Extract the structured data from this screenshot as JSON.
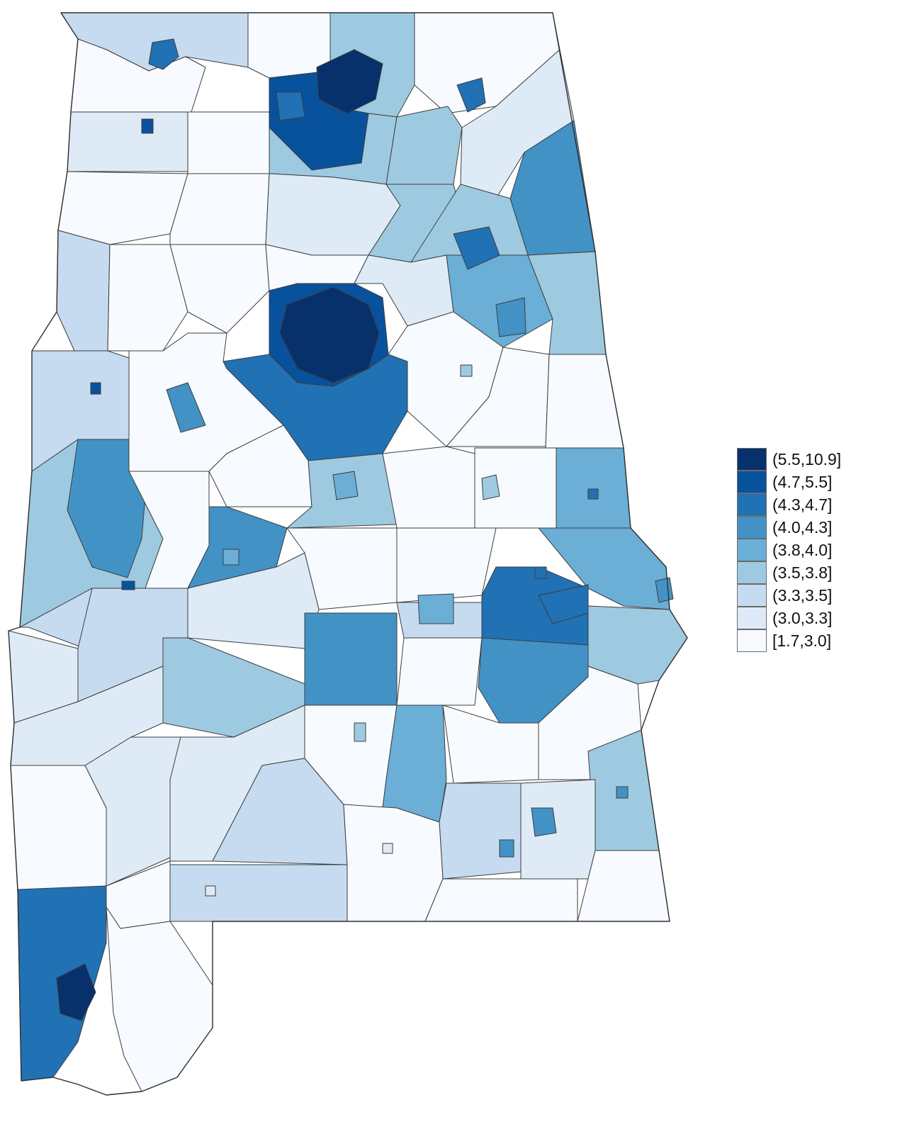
{
  "map": {
    "colors": [
      "#08306b",
      "#08519c",
      "#2171b5",
      "#4292c6",
      "#6baed6",
      "#9ecae1",
      "#c6dbef",
      "#deebf7",
      "#f7fbff"
    ]
  },
  "legend": {
    "items": [
      {
        "label": "(5.5,10.9]",
        "color": "#08306b"
      },
      {
        "label": "(4.7,5.5]",
        "color": "#08519c"
      },
      {
        "label": "(4.3,4.7]",
        "color": "#2171b5"
      },
      {
        "label": "(4.0,4.3]",
        "color": "#4292c6"
      },
      {
        "label": "(3.8,4.0]",
        "color": "#6baed6"
      },
      {
        "label": "(3.5,3.8]",
        "color": "#9ecae1"
      },
      {
        "label": "(3.3,3.5]",
        "color": "#c6dbef"
      },
      {
        "label": "(3.0,3.3]",
        "color": "#deebf7"
      },
      {
        "label": "[1.7,3.0]",
        "color": "#f7fbff"
      }
    ]
  }
}
